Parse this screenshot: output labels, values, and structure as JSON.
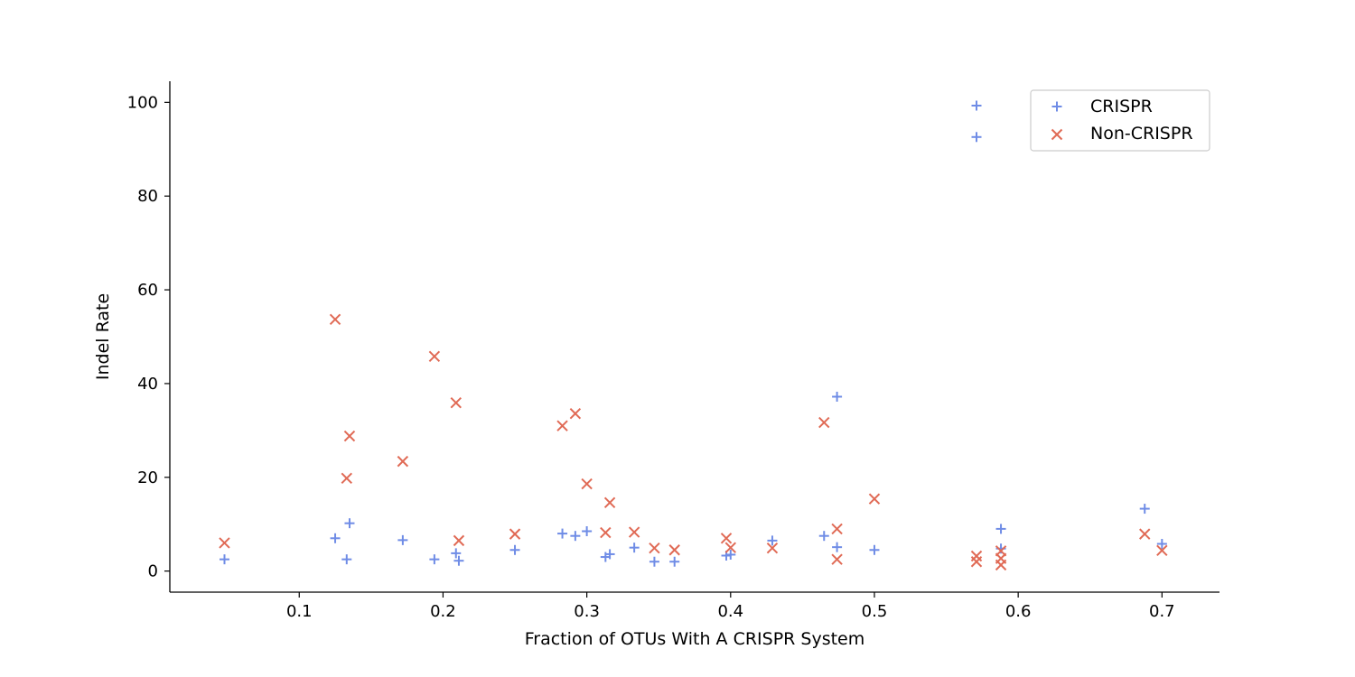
{
  "chart_data": {
    "type": "scatter",
    "title": "",
    "xlabel": "Fraction of OTUs With A CRISPR System",
    "ylabel": "Indel Rate",
    "xlim": [
      0.01,
      0.74
    ],
    "ylim": [
      -4.5,
      104.5
    ],
    "x_ticks": [
      0.1,
      0.2,
      0.3,
      0.4,
      0.5,
      0.6,
      0.7
    ],
    "x_tick_labels": [
      "0.1",
      "0.2",
      "0.3",
      "0.4",
      "0.5",
      "0.6",
      "0.7"
    ],
    "y_ticks": [
      0,
      20,
      40,
      60,
      80,
      100
    ],
    "y_tick_labels": [
      "0",
      "20",
      "40",
      "60",
      "80",
      "100"
    ],
    "grid": false,
    "legend": {
      "position": "top-right"
    },
    "series": [
      {
        "name": "CRISPR",
        "marker": "plus",
        "color": "#6f8ce6",
        "points": [
          [
            0.048,
            2.5
          ],
          [
            0.125,
            7.0
          ],
          [
            0.133,
            2.5
          ],
          [
            0.135,
            10.2
          ],
          [
            0.172,
            6.6
          ],
          [
            0.194,
            2.5
          ],
          [
            0.209,
            3.8
          ],
          [
            0.211,
            2.2
          ],
          [
            0.25,
            4.5
          ],
          [
            0.283,
            8.0
          ],
          [
            0.292,
            7.5
          ],
          [
            0.3,
            8.5
          ],
          [
            0.313,
            3.0
          ],
          [
            0.316,
            3.6
          ],
          [
            0.333,
            5.0
          ],
          [
            0.347,
            2.0
          ],
          [
            0.361,
            2.0
          ],
          [
            0.397,
            3.3
          ],
          [
            0.4,
            3.5
          ],
          [
            0.429,
            6.5
          ],
          [
            0.465,
            7.5
          ],
          [
            0.474,
            37.2
          ],
          [
            0.474,
            5.1
          ],
          [
            0.5,
            4.5
          ],
          [
            0.571,
            99.3
          ],
          [
            0.571,
            92.6
          ],
          [
            0.588,
            9.0
          ],
          [
            0.588,
            4.8
          ],
          [
            0.688,
            13.3
          ],
          [
            0.7,
            5.8
          ]
        ]
      },
      {
        "name": "Non-CRISPR",
        "marker": "x",
        "color": "#e06a55",
        "points": [
          [
            0.048,
            6.0
          ],
          [
            0.125,
            53.7
          ],
          [
            0.133,
            19.8
          ],
          [
            0.135,
            28.8
          ],
          [
            0.172,
            23.4
          ],
          [
            0.194,
            45.8
          ],
          [
            0.209,
            35.9
          ],
          [
            0.211,
            6.5
          ],
          [
            0.25,
            7.9
          ],
          [
            0.283,
            31.0
          ],
          [
            0.292,
            33.6
          ],
          [
            0.3,
            18.6
          ],
          [
            0.313,
            8.2
          ],
          [
            0.316,
            14.6
          ],
          [
            0.333,
            8.3
          ],
          [
            0.347,
            4.9
          ],
          [
            0.361,
            4.5
          ],
          [
            0.397,
            7.0
          ],
          [
            0.4,
            5.0
          ],
          [
            0.429,
            4.9
          ],
          [
            0.465,
            31.7
          ],
          [
            0.474,
            9.0
          ],
          [
            0.474,
            2.5
          ],
          [
            0.5,
            15.4
          ],
          [
            0.571,
            3.2
          ],
          [
            0.571,
            2.0
          ],
          [
            0.588,
            4.3
          ],
          [
            0.588,
            2.7
          ],
          [
            0.588,
            1.3
          ],
          [
            0.688,
            7.9
          ],
          [
            0.7,
            4.4
          ]
        ]
      }
    ]
  }
}
